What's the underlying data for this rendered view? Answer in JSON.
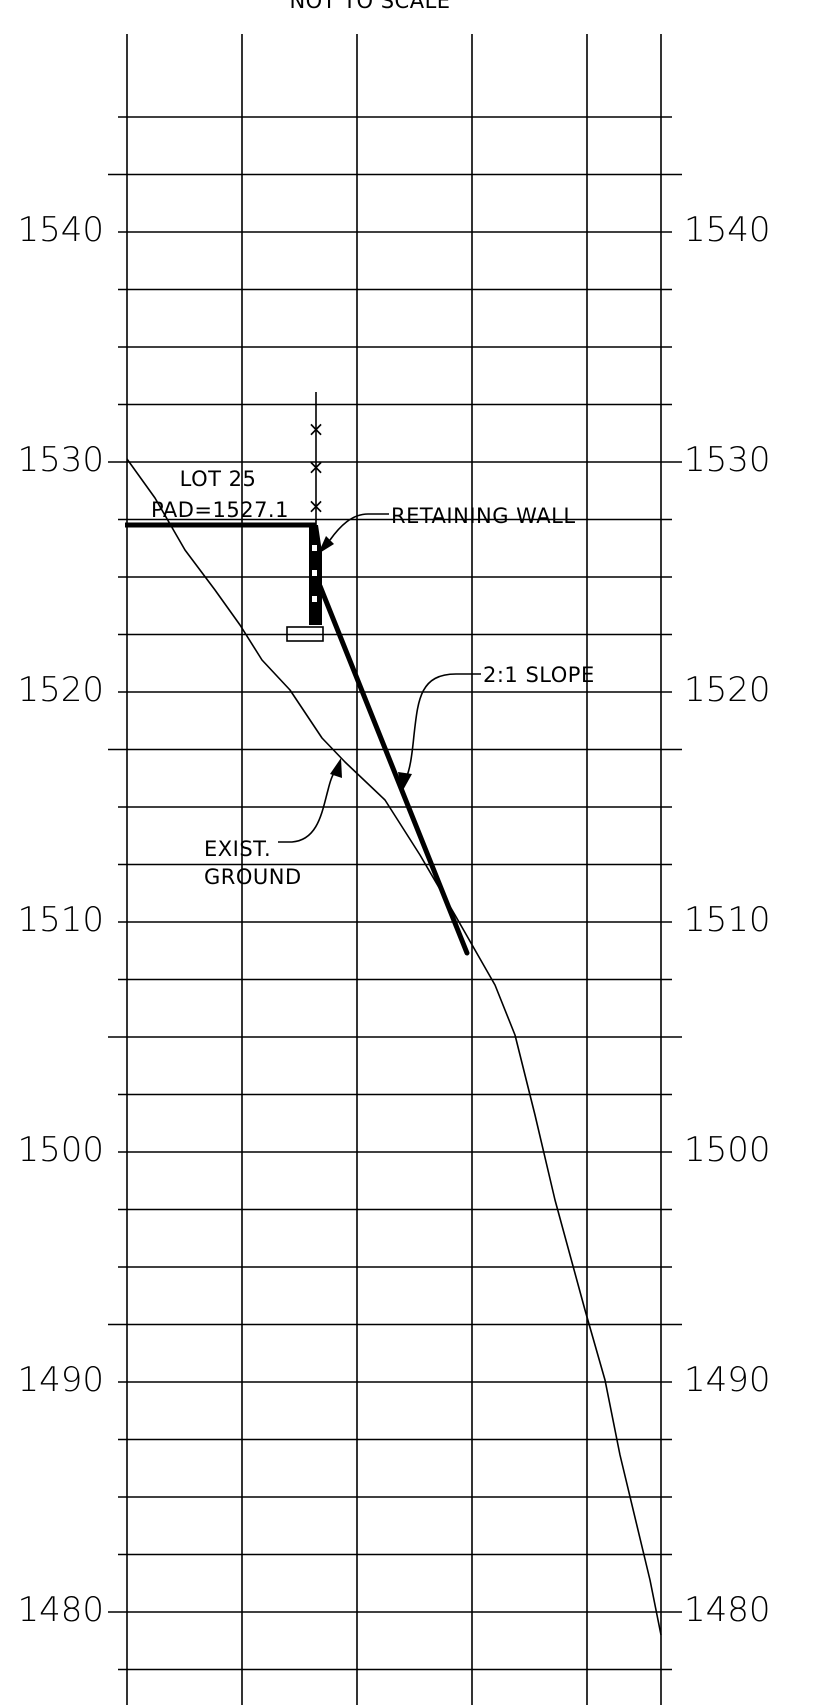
{
  "drawing": {
    "scale_note": "NOT TO SCALE",
    "elevation_labels": [
      "1540",
      "1530",
      "1520",
      "1510",
      "1500",
      "1490",
      "1480"
    ],
    "lot_label": "LOT 25",
    "pad_label": "PAD=1527.1",
    "retaining_wall_label": "RETAINING WALL",
    "slope_label": "2:1 SLOPE",
    "exist_ground_label_line1": "EXIST.",
    "exist_ground_label_line2": "GROUND",
    "fence_symbol": "×",
    "line_color": "#000000"
  }
}
